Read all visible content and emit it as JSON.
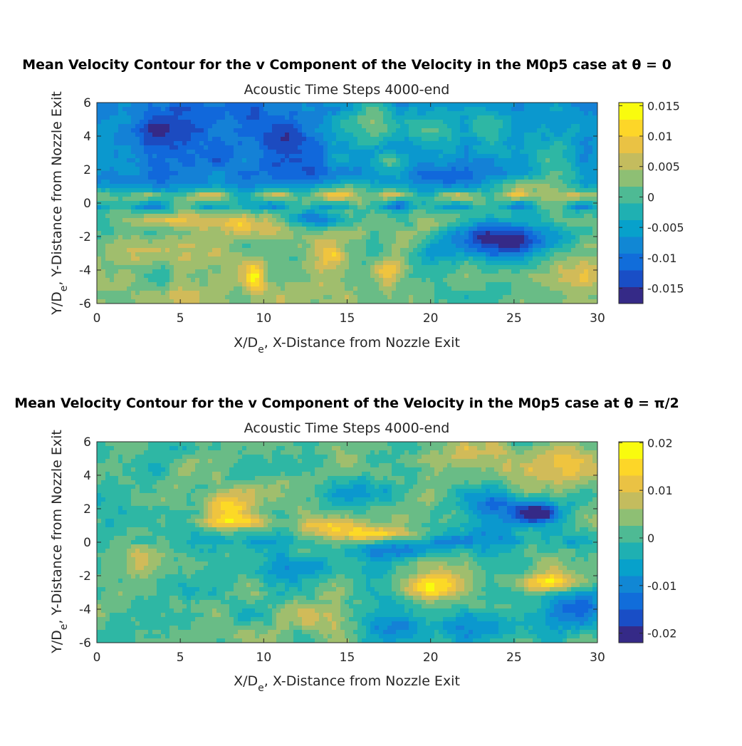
{
  "chart_data": [
    {
      "type": "heatmap",
      "title": "Mean Velocity Contour for the v Component of the Velocity in the M0p5 case at θ = 0",
      "subtitle": "Acoustic Time Steps 4000-end",
      "xlabel": "X/De, X-Distance from Nozzle Exit",
      "ylabel": "Y/De,  Y-Distance from Nozzle Exit",
      "xlim": [
        0,
        30
      ],
      "ylim": [
        -6,
        6
      ],
      "xticks": [
        0,
        5,
        10,
        15,
        20,
        25,
        30
      ],
      "yticks": [
        -6,
        -4,
        -2,
        0,
        2,
        4,
        6
      ],
      "colorbar": {
        "clim": [
          -0.0175,
          0.0155
        ],
        "ticks": [
          -0.015,
          -0.01,
          -0.005,
          0,
          0.005,
          0.01,
          0.015
        ],
        "ticklabels": [
          "-0.015",
          "-0.01",
          "-0.005",
          "0",
          "0.005",
          "0.01",
          "0.015"
        ]
      },
      "colormap": "parula",
      "features": [
        {
          "kind": "background_upper",
          "value": -0.008
        },
        {
          "kind": "background_lower",
          "value": 0.003
        },
        {
          "kind": "blob",
          "x": 4.5,
          "y": 4.5,
          "sx": 3.0,
          "sy": 1.6,
          "v": -0.006
        },
        {
          "kind": "blob",
          "x": 11.5,
          "y": 3.5,
          "sx": 2.5,
          "sy": 2.0,
          "v": -0.007
        },
        {
          "kind": "blob",
          "x": 16.5,
          "y": 4.7,
          "sx": 2.5,
          "sy": 1.4,
          "v": 0.007
        },
        {
          "kind": "blob",
          "x": 22.0,
          "y": 4.5,
          "sx": 3.5,
          "sy": 1.5,
          "v": 0.006
        },
        {
          "kind": "blob",
          "x": 27.5,
          "y": 3.0,
          "sx": 2.5,
          "sy": 3.0,
          "v": 0.005
        },
        {
          "kind": "blob",
          "x": 17.8,
          "y": 2.5,
          "sx": 1.0,
          "sy": 0.5,
          "v": 0.009
        },
        {
          "kind": "blob",
          "x": 25.5,
          "y": 1.1,
          "sx": 1.6,
          "sy": 0.5,
          "v": 0.01
        },
        {
          "kind": "blob",
          "x": 28.0,
          "y": 1.5,
          "sx": 2.0,
          "sy": 0.8,
          "v": 0.006
        },
        {
          "kind": "blob",
          "x": 14.5,
          "y": 1.0,
          "sx": 2.5,
          "sy": 0.6,
          "v": 0.006
        },
        {
          "kind": "blob",
          "x": 13.0,
          "y": -1.0,
          "sx": 2.0,
          "sy": 0.5,
          "v": -0.014
        },
        {
          "kind": "blob",
          "x": 25.0,
          "y": -2.2,
          "sx": 3.0,
          "sy": 1.0,
          "v": -0.016
        },
        {
          "kind": "blob",
          "x": 22.0,
          "y": -2.0,
          "sx": 2.0,
          "sy": 1.0,
          "v": -0.01
        },
        {
          "kind": "blob",
          "x": 4.0,
          "y": -1.0,
          "sx": 2.0,
          "sy": 0.4,
          "v": 0.008
        },
        {
          "kind": "blob",
          "x": 8.0,
          "y": -1.2,
          "sx": 2.0,
          "sy": 0.6,
          "v": 0.008
        },
        {
          "kind": "blob",
          "x": 14.0,
          "y": -3.0,
          "sx": 1.0,
          "sy": 0.8,
          "v": 0.01
        },
        {
          "kind": "blob",
          "x": 17.5,
          "y": -4.1,
          "sx": 1.1,
          "sy": 0.7,
          "v": 0.011
        },
        {
          "kind": "blob",
          "x": 11.0,
          "y": -4.0,
          "sx": 1.2,
          "sy": 1.0,
          "v": -0.004
        },
        {
          "kind": "blob",
          "x": 9.5,
          "y": -4.5,
          "sx": 0.6,
          "sy": 1.3,
          "v": 0.009
        },
        {
          "kind": "blob",
          "x": 24.5,
          "y": -4.5,
          "sx": 3.5,
          "sy": 1.5,
          "v": -0.004
        },
        {
          "kind": "blob",
          "x": 28.0,
          "y": -4.5,
          "sx": 2.0,
          "sy": 1.0,
          "v": 0.004
        },
        {
          "kind": "blob",
          "x": 20.0,
          "y": -3.5,
          "sx": 2.0,
          "sy": 1.0,
          "v": -0.006
        },
        {
          "kind": "jet_line",
          "y": 0.5,
          "v": 0.008
        },
        {
          "kind": "jet_line",
          "y": -0.2,
          "v": -0.008
        }
      ]
    },
    {
      "type": "heatmap",
      "title": "Mean Velocity Contour for the v Component of the Velocity in the M0p5 case at θ = π/2",
      "subtitle": "Acoustic Time Steps 4000-end",
      "xlabel": "X/De, X-Distance from Nozzle Exit",
      "ylabel": "Y/De,  Y-Distance from Nozzle Exit",
      "xlim": [
        0,
        30
      ],
      "ylim": [
        -6,
        6
      ],
      "xticks": [
        0,
        5,
        10,
        15,
        20,
        25,
        30
      ],
      "yticks": [
        -6,
        -4,
        -2,
        0,
        2,
        4,
        6
      ],
      "colorbar": {
        "clim": [
          -0.022,
          0.0202
        ],
        "ticks": [
          -0.02,
          -0.01,
          0,
          0.01,
          0.02
        ],
        "ticklabels": [
          "-0.02",
          "-0.01",
          "0",
          "0.01",
          "0.02"
        ]
      },
      "colormap": "parula",
      "features": [
        {
          "kind": "background_upper",
          "value": 0.001
        },
        {
          "kind": "background_lower",
          "value": 0.001
        },
        {
          "kind": "blob",
          "x": 8.0,
          "y": 2.3,
          "sx": 1.4,
          "sy": 0.9,
          "v": 0.016
        },
        {
          "kind": "blob",
          "x": 8.5,
          "y": 1.2,
          "sx": 2.0,
          "sy": 0.4,
          "v": 0.012
        },
        {
          "kind": "blob",
          "x": 17.0,
          "y": 0.5,
          "sx": 3.5,
          "sy": 0.4,
          "v": 0.014
        },
        {
          "kind": "blob",
          "x": 14.0,
          "y": 1.0,
          "sx": 2.0,
          "sy": 0.4,
          "v": 0.01
        },
        {
          "kind": "blob",
          "x": 28.0,
          "y": 4.6,
          "sx": 2.5,
          "sy": 1.3,
          "v": 0.012
        },
        {
          "kind": "blob",
          "x": 22.5,
          "y": 5.0,
          "sx": 3.0,
          "sy": 1.2,
          "v": 0.006
        },
        {
          "kind": "blob",
          "x": 20.0,
          "y": -2.6,
          "sx": 2.0,
          "sy": 0.7,
          "v": 0.017
        },
        {
          "kind": "blob",
          "x": 27.0,
          "y": -2.4,
          "sx": 2.0,
          "sy": 0.6,
          "v": 0.018
        },
        {
          "kind": "blob",
          "x": 24.5,
          "y": 2.0,
          "sx": 2.5,
          "sy": 0.8,
          "v": -0.014
        },
        {
          "kind": "blob",
          "x": 26.5,
          "y": 1.7,
          "sx": 1.0,
          "sy": 0.5,
          "v": -0.02
        },
        {
          "kind": "blob",
          "x": 17.0,
          "y": -0.5,
          "sx": 3.0,
          "sy": 0.5,
          "v": -0.012
        },
        {
          "kind": "blob",
          "x": 22.0,
          "y": 0.3,
          "sx": 3.0,
          "sy": 0.8,
          "v": -0.01
        },
        {
          "kind": "blob",
          "x": 12.0,
          "y": -1.6,
          "sx": 3.0,
          "sy": 0.7,
          "v": -0.009
        },
        {
          "kind": "blob",
          "x": 28.5,
          "y": -4.0,
          "sx": 2.0,
          "sy": 1.2,
          "v": -0.016
        },
        {
          "kind": "blob",
          "x": 23.0,
          "y": -5.0,
          "sx": 3.0,
          "sy": 1.0,
          "v": -0.01
        },
        {
          "kind": "blob",
          "x": 17.5,
          "y": -4.8,
          "sx": 1.5,
          "sy": 1.0,
          "v": -0.01
        },
        {
          "kind": "blob",
          "x": 13.0,
          "y": -4.5,
          "sx": 2.0,
          "sy": 1.2,
          "v": 0.005
        },
        {
          "kind": "blob",
          "x": 3.0,
          "y": -1.0,
          "sx": 1.0,
          "sy": 1.0,
          "v": 0.006
        },
        {
          "kind": "blob",
          "x": 11.0,
          "y": 3.5,
          "sx": 2.0,
          "sy": 1.0,
          "v": 0.004
        },
        {
          "kind": "blob",
          "x": 15.5,
          "y": 3.0,
          "sx": 2.5,
          "sy": 0.8,
          "v": -0.006
        },
        {
          "kind": "jet_line",
          "y": 0.1,
          "v": -0.004
        }
      ]
    }
  ]
}
